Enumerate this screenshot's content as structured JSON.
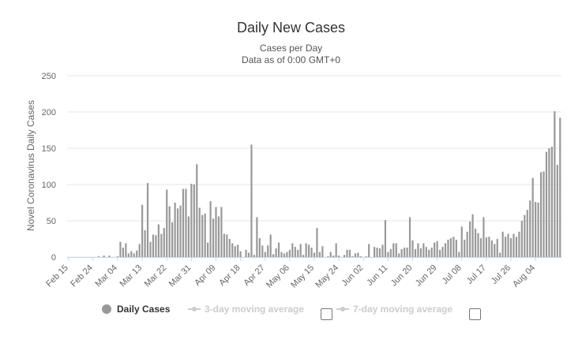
{
  "chart_data": {
    "type": "bar",
    "title": "Daily New Cases",
    "subtitle_lines": [
      "Cases per Day",
      "Data as of 0:00 GMT+0"
    ],
    "xlabel": "",
    "ylabel": "Novel Coronavirus Daily Cases",
    "ylim": [
      0,
      250
    ],
    "yticks": [
      0,
      50,
      100,
      150,
      200,
      250
    ],
    "grid": true,
    "x_tick_labels": [
      "Feb 15",
      "Feb 24",
      "Mar 04",
      "Mar 13",
      "Mar 22",
      "Mar 31",
      "Apr 09",
      "Apr 18",
      "Apr 27",
      "May 06",
      "May 15",
      "May 24",
      "Jun 02",
      "Jun 11",
      "Jun 20",
      "Jun 29",
      "Jul 08",
      "Jul 17",
      "Jul 26",
      "Aug 04"
    ],
    "categories_start": "Feb 15",
    "series": [
      {
        "name": "Daily Cases",
        "color": "#999999",
        "values": [
          0,
          0,
          0,
          0,
          0,
          0,
          0,
          0,
          0,
          0,
          0,
          1,
          0,
          2,
          0,
          2,
          0,
          0,
          1,
          21,
          13,
          19,
          5,
          8,
          5,
          9,
          18,
          72,
          37,
          102,
          21,
          31,
          30,
          45,
          32,
          40,
          93,
          70,
          48,
          75,
          67,
          71,
          94,
          94,
          56,
          101,
          100,
          128,
          68,
          58,
          60,
          20,
          77,
          53,
          69,
          56,
          69,
          32,
          31,
          25,
          19,
          15,
          17,
          8,
          0,
          10,
          6,
          155,
          3,
          55,
          26,
          16,
          7,
          16,
          31,
          4,
          12,
          20,
          7,
          5,
          7,
          10,
          19,
          14,
          10,
          18,
          3,
          19,
          17,
          13,
          6,
          40,
          7,
          15,
          0,
          1,
          7,
          2,
          19,
          2,
          0,
          3,
          10,
          10,
          1,
          5,
          6,
          1,
          0,
          1,
          18,
          0,
          14,
          13,
          12,
          17,
          51,
          7,
          11,
          19,
          19,
          5,
          11,
          13,
          13,
          55,
          23,
          11,
          19,
          12,
          19,
          14,
          10,
          13,
          20,
          22,
          10,
          14,
          19,
          24,
          26,
          28,
          24,
          7,
          42,
          24,
          35,
          49,
          59,
          39,
          33,
          26,
          55,
          27,
          28,
          23,
          18,
          25,
          6,
          35,
          28,
          32,
          26,
          32,
          28,
          35,
          50,
          58,
          65,
          78,
          109,
          76,
          75,
          117,
          118,
          145,
          150,
          152,
          201,
          127,
          192
        ]
      }
    ]
  },
  "legend": {
    "daily_cases": "Daily Cases",
    "avg3": "3-day moving average",
    "avg7": "7-day moving average"
  },
  "colors": {
    "bar": "#999999",
    "grid": "#e6e6e6",
    "disabled": "#cccccc"
  }
}
